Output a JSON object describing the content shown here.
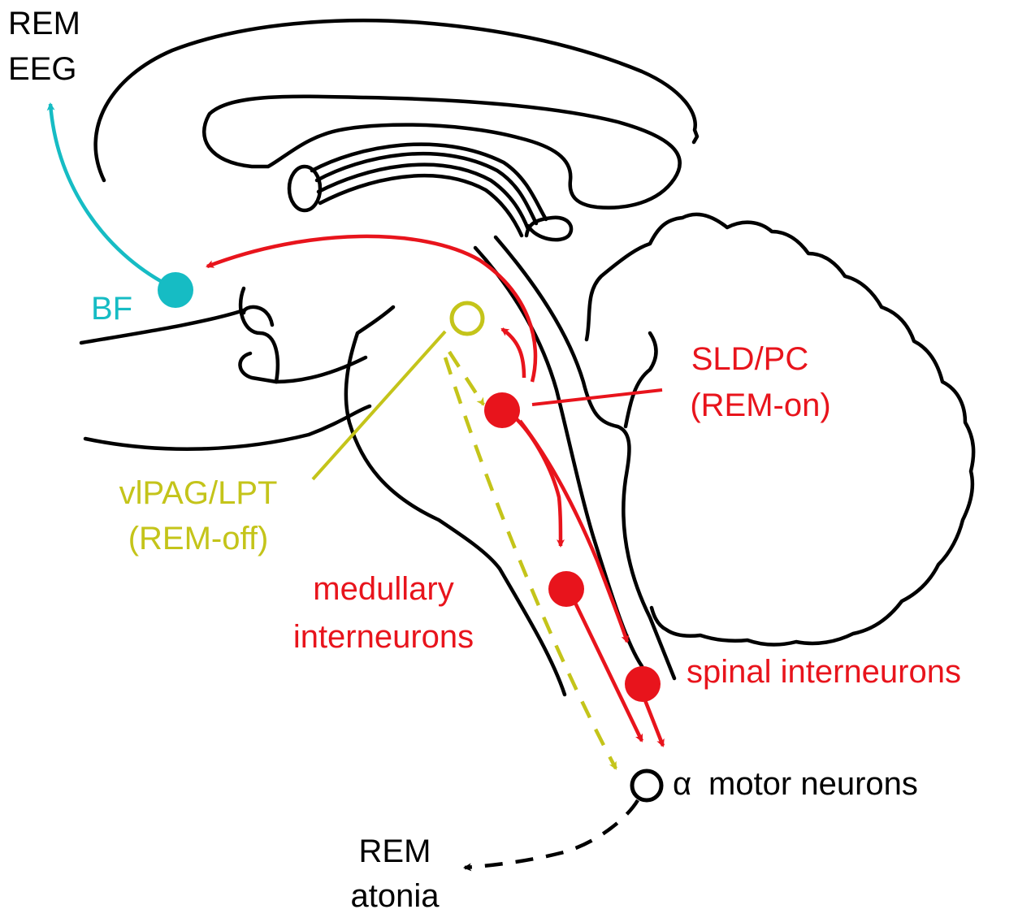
{
  "colors": {
    "red": "#e8141c",
    "yellow": "#c4c41a",
    "cyan": "#16bcc4",
    "black": "#000000"
  },
  "labels": {
    "rem_eeg_line1": "REM",
    "rem_eeg_line2": "EEG",
    "bf": "BF",
    "sld_pc_line1": "SLD/PC",
    "sld_pc_line2": "(REM-on)",
    "vlpag_line1": "vlPAG/LPT",
    "vlpag_line2": "(REM-off)",
    "medullary_line1": "medullary",
    "medullary_line2": "interneurons",
    "spinal": "spinal interneurons",
    "alpha_symbol": "α",
    "motor_neurons": "motor neurons",
    "rem_atonia_line1": "REM",
    "rem_atonia_line2": "atonia"
  }
}
